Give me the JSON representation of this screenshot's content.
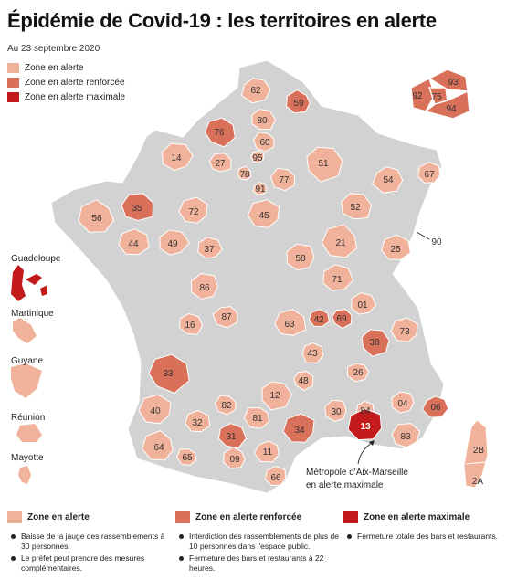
{
  "title": "Épidémie de Covid-19 : les territoires en alerte",
  "subtitle": "Au 23 septembre 2020",
  "colors": {
    "none": "#d2d2d2",
    "alerte": "#f0b29a",
    "renforcee": "#d9705a",
    "maximale": "#c31b1b"
  },
  "legend_top": [
    {
      "label": "Zone en alerte",
      "level": "alerte"
    },
    {
      "label": "Zone en alerte renforcée",
      "level": "renforcee"
    },
    {
      "label": "Zone en alerte maximale",
      "level": "maximale"
    }
  ],
  "departements": [
    {
      "code": "62",
      "level": "alerte"
    },
    {
      "code": "59",
      "level": "renforcee"
    },
    {
      "code": "80",
      "level": "alerte"
    },
    {
      "code": "60",
      "level": "alerte"
    },
    {
      "code": "76",
      "level": "renforcee"
    },
    {
      "code": "14",
      "level": "alerte"
    },
    {
      "code": "27",
      "level": "alerte"
    },
    {
      "code": "95",
      "level": "alerte"
    },
    {
      "code": "78",
      "level": "alerte"
    },
    {
      "code": "91",
      "level": "alerte"
    },
    {
      "code": "77",
      "level": "alerte"
    },
    {
      "code": "51",
      "level": "alerte"
    },
    {
      "code": "54",
      "level": "alerte"
    },
    {
      "code": "67",
      "level": "alerte"
    },
    {
      "code": "56",
      "level": "alerte"
    },
    {
      "code": "35",
      "level": "renforcee"
    },
    {
      "code": "72",
      "level": "alerte"
    },
    {
      "code": "45",
      "level": "alerte"
    },
    {
      "code": "52",
      "level": "alerte"
    },
    {
      "code": "90",
      "level": "alerte"
    },
    {
      "code": "44",
      "level": "alerte"
    },
    {
      "code": "49",
      "level": "alerte"
    },
    {
      "code": "37",
      "level": "alerte"
    },
    {
      "code": "21",
      "level": "alerte"
    },
    {
      "code": "25",
      "level": "alerte"
    },
    {
      "code": "58",
      "level": "alerte"
    },
    {
      "code": "71",
      "level": "alerte"
    },
    {
      "code": "86",
      "level": "alerte"
    },
    {
      "code": "01",
      "level": "alerte"
    },
    {
      "code": "16",
      "level": "alerte"
    },
    {
      "code": "87",
      "level": "alerte"
    },
    {
      "code": "63",
      "level": "alerte"
    },
    {
      "code": "42",
      "level": "renforcee"
    },
    {
      "code": "69",
      "level": "renforcee"
    },
    {
      "code": "73",
      "level": "alerte"
    },
    {
      "code": "38",
      "level": "renforcee"
    },
    {
      "code": "43",
      "level": "alerte"
    },
    {
      "code": "33",
      "level": "renforcee"
    },
    {
      "code": "26",
      "level": "alerte"
    },
    {
      "code": "48",
      "level": "alerte"
    },
    {
      "code": "12",
      "level": "alerte"
    },
    {
      "code": "40",
      "level": "alerte"
    },
    {
      "code": "82",
      "level": "alerte"
    },
    {
      "code": "30",
      "level": "alerte"
    },
    {
      "code": "84",
      "level": "alerte"
    },
    {
      "code": "04",
      "level": "alerte"
    },
    {
      "code": "06",
      "level": "renforcee"
    },
    {
      "code": "81",
      "level": "alerte"
    },
    {
      "code": "32",
      "level": "alerte"
    },
    {
      "code": "34",
      "level": "renforcee"
    },
    {
      "code": "13",
      "level": "maximale"
    },
    {
      "code": "83",
      "level": "alerte"
    },
    {
      "code": "31",
      "level": "renforcee"
    },
    {
      "code": "64",
      "level": "alerte"
    },
    {
      "code": "65",
      "level": "alerte"
    },
    {
      "code": "09",
      "level": "alerte"
    },
    {
      "code": "11",
      "level": "alerte"
    },
    {
      "code": "66",
      "level": "alerte"
    },
    {
      "code": "2B",
      "level": "alerte"
    },
    {
      "code": "2A",
      "level": "alerte"
    },
    {
      "code": "92",
      "level": "renforcee"
    },
    {
      "code": "75",
      "level": "renforcee"
    },
    {
      "code": "93",
      "level": "renforcee"
    },
    {
      "code": "94",
      "level": "renforcee"
    }
  ],
  "outre_mer": [
    {
      "name": "Guadeloupe",
      "level": "maximale"
    },
    {
      "name": "Martinique",
      "level": "alerte"
    },
    {
      "name": "Guyane",
      "level": "alerte"
    },
    {
      "name": "Réunion",
      "level": "alerte"
    },
    {
      "name": "Mayotte",
      "level": "alerte"
    }
  ],
  "annotation": {
    "line1": "Métropole d'Aix-Marseille",
    "line2": "en alerte maximale"
  },
  "legend_bottom": [
    {
      "label": "Zone en alerte",
      "level": "alerte",
      "items": [
        "Baisse de la jauge des rassemblements à 30 personnes.",
        "Le préfet peut prendre des mesures complémentaires."
      ]
    },
    {
      "label": "Zone en alerte renforcée",
      "level": "renforcee",
      "items": [
        "Interdiction des rassemblements de plus de 10 personnes dans l'espace public.",
        "Fermeture des bars et restaurants à 22 heures."
      ]
    },
    {
      "label": "Zone en alerte maximale",
      "level": "maximale",
      "items": [
        "Fermeture totale des bars et restaurants."
      ]
    }
  ]
}
